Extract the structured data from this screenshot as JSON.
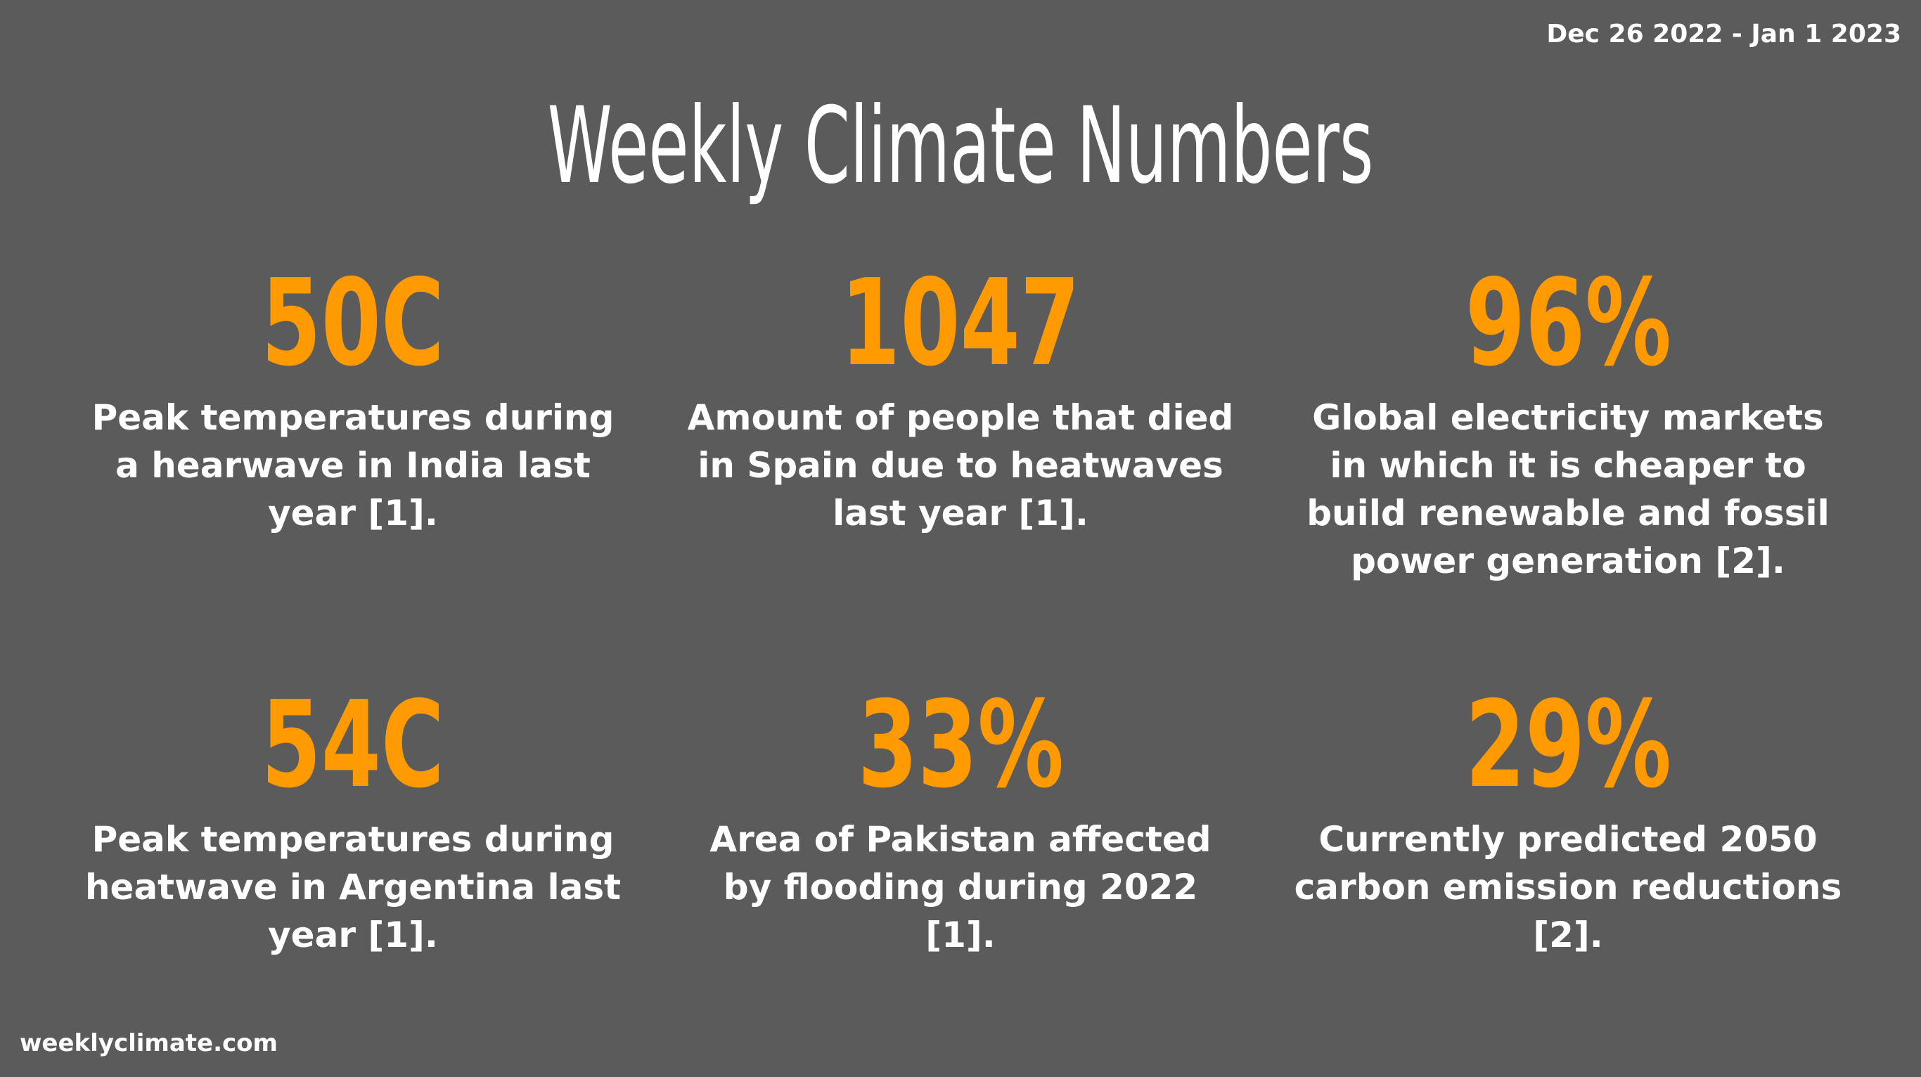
{
  "header": {
    "date_range": "Dec 26 2022 - Jan 1 2023",
    "title": "Weekly Climate Numbers"
  },
  "stats": [
    {
      "value": "50C",
      "description": "Peak temperatures during a hearwave in India last year [1]."
    },
    {
      "value": "1047",
      "description": "Amount of people that died in Spain due to heatwaves last year [1]."
    },
    {
      "value": "96%",
      "description": "Global electricity markets in which it is cheaper to build renewable and fossil power generation [2]."
    },
    {
      "value": "54C",
      "description": "Peak temperatures during heatwave in Argentina last year [1]."
    },
    {
      "value": "33%",
      "description": "Area of Pakistan affected by flooding during 2022 [1]."
    },
    {
      "value": "29%",
      "description": "Currently predicted 2050 carbon emission reductions [2]."
    }
  ],
  "footer": {
    "site": "weeklyclimate.com"
  },
  "colors": {
    "background": "#5b5b5b",
    "accent": "#ff9a00",
    "text": "#ffffff"
  }
}
